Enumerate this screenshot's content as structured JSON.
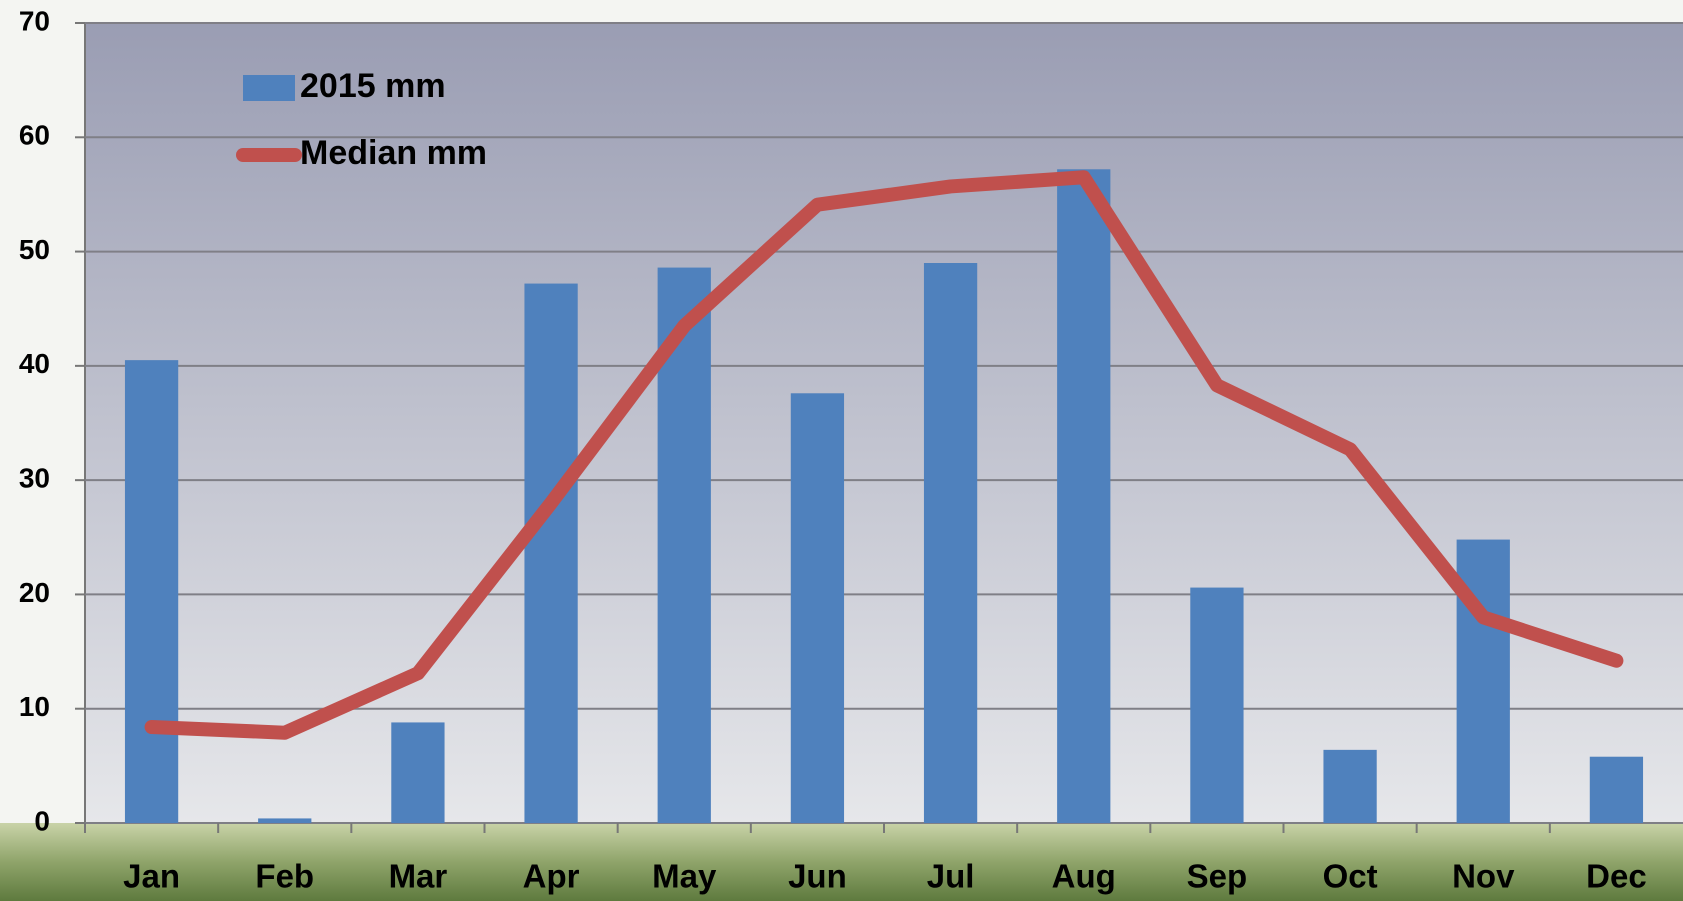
{
  "chart_data": {
    "type": "bar_line",
    "categories": [
      "Jan",
      "Feb",
      "Mar",
      "Apr",
      "May",
      "Jun",
      "Jul",
      "Aug",
      "Sep",
      "Oct",
      "Nov",
      "Dec"
    ],
    "series": [
      {
        "name": "2015 mm",
        "type": "bar",
        "color": "#4f81bd",
        "values": [
          40.5,
          0.4,
          8.8,
          47.2,
          48.6,
          37.6,
          49,
          57.2,
          20.6,
          6.4,
          24.8,
          5.8
        ]
      },
      {
        "name": "Median mm",
        "type": "line",
        "color": "#c0504d",
        "values": [
          8.4,
          7.9,
          13.1,
          28,
          43.5,
          54.1,
          55.7,
          56.5,
          38.3,
          32.7,
          18,
          14.2
        ]
      }
    ],
    "ylim": [
      0,
      70
    ],
    "yticks": [
      0,
      10,
      20,
      30,
      40,
      50,
      60,
      70
    ],
    "grid": true,
    "legend": "top-left"
  }
}
